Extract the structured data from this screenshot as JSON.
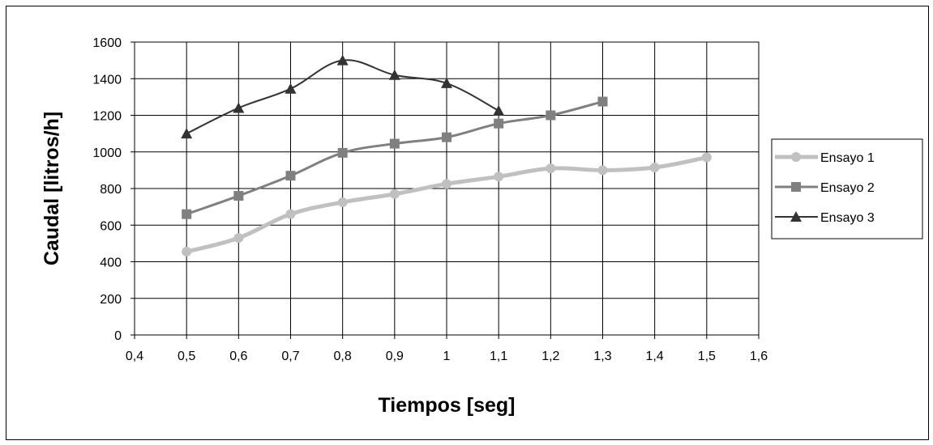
{
  "chart_data": {
    "type": "line",
    "title": "",
    "xlabel": "Tiempos [seg]",
    "ylabel": "Caudal [litros/h]",
    "xlim": [
      0.4,
      1.6
    ],
    "ylim": [
      0,
      1600
    ],
    "x_ticks": [
      0.4,
      0.5,
      0.6,
      0.7,
      0.8,
      0.9,
      1.0,
      1.1,
      1.2,
      1.3,
      1.4,
      1.5,
      1.6
    ],
    "x_tick_labels": [
      "0,4",
      "0,5",
      "0,6",
      "0,7",
      "0,8",
      "0,9",
      "1",
      "1,1",
      "1,2",
      "1,3",
      "1,4",
      "1,5",
      "1,6"
    ],
    "y_ticks": [
      0,
      200,
      400,
      600,
      800,
      1000,
      1200,
      1400,
      1600
    ],
    "y_tick_labels": [
      "0",
      "200",
      "400",
      "600",
      "800",
      "1000",
      "1200",
      "1400",
      "1600"
    ],
    "grid": true,
    "legend_position": "right",
    "series": [
      {
        "name": "Ensayo 1",
        "color": "#c0c0c0",
        "marker": "circle",
        "x": [
          0.5,
          0.6,
          0.7,
          0.8,
          0.9,
          1.0,
          1.1,
          1.2,
          1.3,
          1.4,
          1.5
        ],
        "y": [
          455,
          530,
          660,
          725,
          770,
          825,
          865,
          910,
          900,
          915,
          970
        ]
      },
      {
        "name": "Ensayo 2",
        "color": "#808080",
        "marker": "square",
        "x": [
          0.5,
          0.6,
          0.7,
          0.8,
          0.9,
          1.0,
          1.1,
          1.2,
          1.3
        ],
        "y": [
          660,
          760,
          870,
          995,
          1045,
          1080,
          1155,
          1200,
          1275
        ]
      },
      {
        "name": "Ensayo 3",
        "color": "#333333",
        "marker": "triangle",
        "x": [
          0.5,
          0.6,
          0.7,
          0.8,
          0.9,
          1.0,
          1.1
        ],
        "y": [
          1100,
          1240,
          1345,
          1500,
          1420,
          1375,
          1225
        ]
      }
    ]
  }
}
